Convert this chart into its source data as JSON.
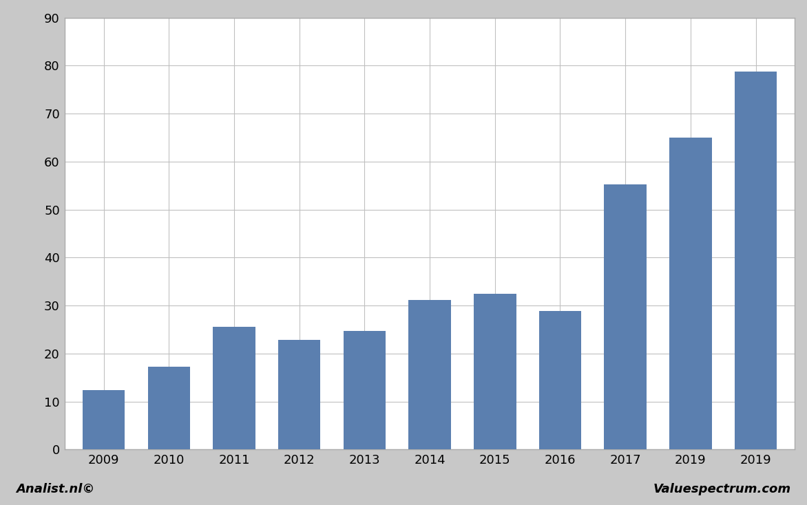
{
  "categories": [
    "2009",
    "2010",
    "2011",
    "2012",
    "2013",
    "2014",
    "2015",
    "2016",
    "2017",
    "2019",
    "2019"
  ],
  "values": [
    12.3,
    17.3,
    25.5,
    22.9,
    24.7,
    31.1,
    32.4,
    28.9,
    55.2,
    65.0,
    78.7
  ],
  "bar_color": "#5b7faf",
  "ylim": [
    0,
    90
  ],
  "yticks": [
    0,
    10,
    20,
    30,
    40,
    50,
    60,
    70,
    80,
    90
  ],
  "background_color": "#ffffff",
  "outer_background": "#c8c8c8",
  "footer_left": "Analist.nl©",
  "footer_right": "Valuespectrum.com",
  "grid_color": "#c0c0c0",
  "spine_color": "#aaaaaa"
}
